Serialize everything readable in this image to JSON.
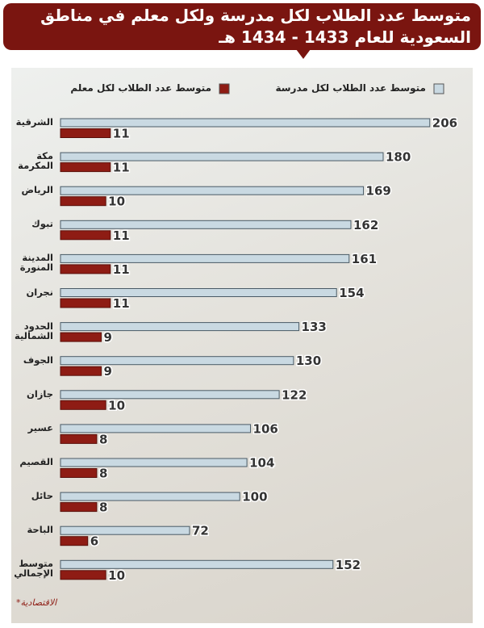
{
  "chart_data": {
    "type": "bar",
    "orientation": "horizontal",
    "title": "متوسط عدد الطلاب لكل مدرسة ولكل معلم في مناطق السعودية للعام 1433 - 1434 هـ",
    "categories": [
      "الشرقية",
      "مكة المكرمة",
      "الرياض",
      "تبوك",
      "المدينة المنورة",
      "نجران",
      "الحدود الشمالية",
      "الجوف",
      "جازان",
      "عسير",
      "القصيم",
      "حائل",
      "الباحة",
      "متوسط الإجمالي"
    ],
    "series": [
      {
        "name": "متوسط عدد الطلاب لكل مدرسة",
        "color": "#c9d9e2",
        "values": [
          206,
          180,
          169,
          162,
          161,
          154,
          133,
          130,
          122,
          106,
          104,
          100,
          72,
          152
        ]
      },
      {
        "name": "متوسط عدد الطلاب لكل معلم",
        "color": "#8e1c14",
        "axis": "x2",
        "values": [
          11,
          11,
          10,
          11,
          11,
          11,
          9,
          9,
          10,
          8,
          8,
          8,
          6,
          10
        ]
      }
    ],
    "xlim": [
      0,
      225
    ],
    "x2lim": [
      0,
      89
    ],
    "source": "الاقتصادية*"
  }
}
